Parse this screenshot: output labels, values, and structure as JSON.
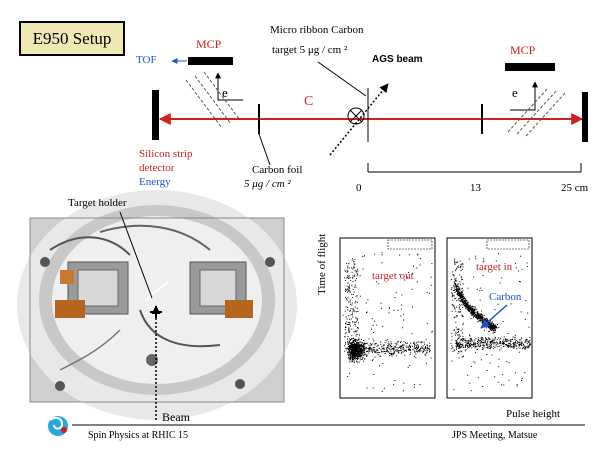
{
  "title": "E950 Setup",
  "diagram": {
    "left_mcp": "MCP",
    "right_mcp": "MCP",
    "tof": "TOF",
    "e_left": "e",
    "e_right": "e",
    "c_label": "C",
    "target_label_1": "Micro ribbon Carbon",
    "target_label_2": "target  5 μg / cm ²",
    "ags_beam": "AGS beam",
    "silicon_1": "Silicon strip",
    "silicon_2": "detector",
    "energy": "Energy",
    "carbon_foil_1": "Carbon foil",
    "carbon_foil_2": "5 μg / cm ²",
    "scale_0": "0",
    "scale_13": "13",
    "scale_25": "25 cm"
  },
  "photo": {
    "target_holder": "Target holder",
    "beam": "Beam"
  },
  "plots": {
    "ylabel": "Time of flight",
    "xlabel": "Pulse height",
    "left_label": "target  out",
    "right_label": "target in",
    "carbon": "Carbon"
  },
  "footer": {
    "left": "Spin Physics at RHIC   15",
    "right": "JPS Meeting, Matsue"
  },
  "colors": {
    "beam_line": "#d21e1e",
    "blue_text": "#1e4fd2",
    "title_bg": "#f0e8b2"
  }
}
